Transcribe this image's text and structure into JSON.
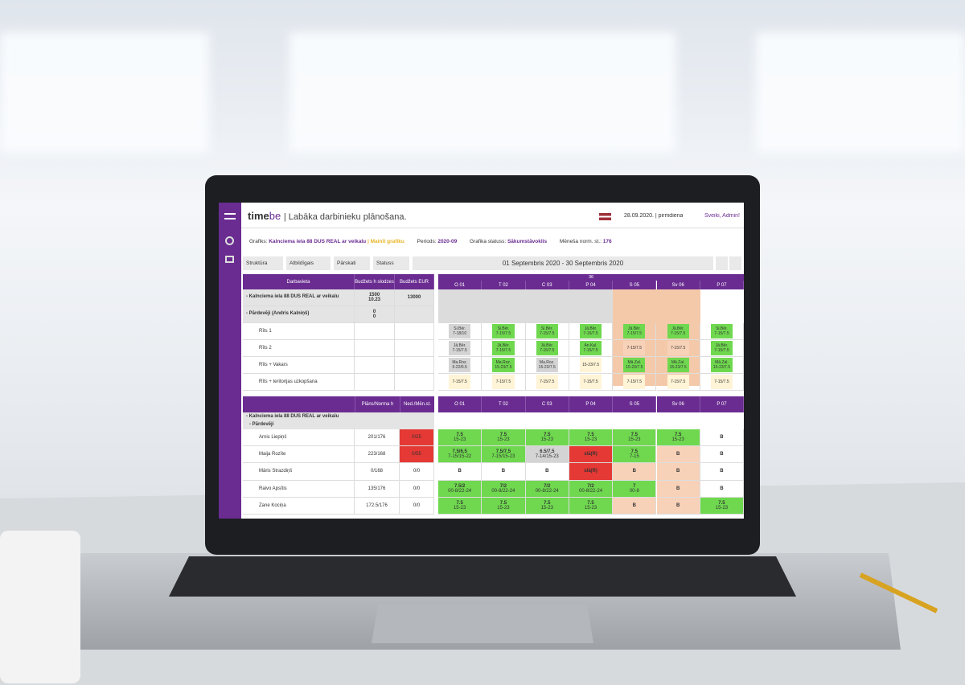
{
  "header": {
    "logo_a": "time",
    "logo_b": "be",
    "tagline": "| Labāka darbinieku plānošana.",
    "date": "28.09.2020. | pirmdiena",
    "greeting": "Sveiki, Admin!"
  },
  "infobar": {
    "grafiks_label": "Grafiks:",
    "grafiks_value": "Kalnciema iela 88 DUS REAL ar veikalu",
    "change_link": "| Mainīt grafiku",
    "periods_label": "Periods:",
    "periods_value": "2020-09",
    "status_label": "Grafika statuss:",
    "status_value": "Sākumstāvoklis",
    "norm_label": "Mēneša norm. st.:",
    "norm_value": "176"
  },
  "filters": [
    "Struktūra",
    "Atbildīgais",
    "Pārskati",
    "Statuss"
  ],
  "date_range": "01 Septembris 2020 - 30 Septembris 2020",
  "days": [
    "O 01",
    "T 02",
    "C 03",
    "P 04",
    "S 05",
    "Sv 06",
    "P 07"
  ],
  "week": "36",
  "top_table": {
    "headers": [
      "Darbavieta",
      "Budžets h slodzes",
      "Budžets EUR"
    ],
    "rows": [
      {
        "label": "- Kalnciema iela 88 DUS REAL ar veikalu",
        "h": [
          "1500",
          "10.23"
        ],
        "eur": "13000",
        "kind": "group",
        "cells": []
      },
      {
        "label": "- Pārdevēji (Andris Kalniņš)",
        "h": [
          "0",
          "0"
        ],
        "kind": "group2",
        "cells": []
      },
      {
        "label": "Rīts 1",
        "kind": "pos",
        "cells": [
          {
            "lines": [
              "Si.Bēr.",
              "7-18/10"
            ],
            "color": "gray"
          },
          {
            "lines": [
              "Si.Bēr.",
              "7-15/7.5"
            ],
            "color": "green"
          },
          {
            "lines": [
              "Si.Bēr.",
              "7-15/7.5"
            ],
            "color": "green"
          },
          {
            "lines": [
              "Jā.Bēr.",
              "7-15/7.5"
            ],
            "color": "green"
          },
          {
            "lines": [
              "Jā.Bēr.",
              "7-15/7.5"
            ],
            "color": "green"
          },
          {
            "lines": [
              "Jā.Bēr.",
              "7-15/7.5"
            ],
            "color": "green"
          },
          {
            "lines": [
              "Si.Bēr.",
              "7-15/7.5"
            ],
            "color": "green"
          }
        ]
      },
      {
        "label": "Rīts 2",
        "kind": "pos",
        "cells": [
          {
            "lines": [
              "Jā.Bēr.",
              "7-15/7.5"
            ],
            "color": "gray"
          },
          {
            "lines": [
              "Jā.Bēr.",
              "7-15/7.5"
            ],
            "color": "green"
          },
          {
            "lines": [
              "Jā.Bēr.",
              "7-15/7.5"
            ],
            "color": "green"
          },
          {
            "lines": [
              "An.Kal.",
              "7-15/7.5"
            ],
            "color": "green"
          },
          {
            "lines": [
              "7-15/7.5"
            ],
            "color": "peach"
          },
          {
            "lines": [
              "7-15/7.5"
            ],
            "color": "peach"
          },
          {
            "lines": [
              "Jā.Bēr.",
              "7-15/7.5"
            ],
            "color": "green"
          }
        ]
      },
      {
        "label": "Rīts + Vakars",
        "kind": "pos",
        "cells": [
          {
            "lines": [
              "Ma.Roz.",
              "5-22/6.5"
            ],
            "color": "gray"
          },
          {
            "lines": [
              "Ma.Roz.",
              "15-23/7.5"
            ],
            "color": "green"
          },
          {
            "lines": [
              "Ma.Roz.",
              "15-23/7.5"
            ],
            "color": "gray"
          },
          {
            "lines": [
              "15-23/7.5"
            ],
            "color": "cream"
          },
          {
            "lines": [
              "Mā.Zal.",
              "15-23/7.5"
            ],
            "color": "green"
          },
          {
            "lines": [
              "Mā.Zal.",
              "15-23/7.5"
            ],
            "color": "green"
          },
          {
            "lines": [
              "Mā.Zal.",
              "15-23/7.5"
            ],
            "color": "green"
          }
        ]
      },
      {
        "label": "Rīts + teritorijas uzkopšana",
        "kind": "pos",
        "cells": [
          {
            "lines": [
              "7-15/7.5"
            ],
            "color": "cream"
          },
          {
            "lines": [
              "7-15/7.5"
            ],
            "color": "cream"
          },
          {
            "lines": [
              "7-15/7.5"
            ],
            "color": "cream"
          },
          {
            "lines": [
              "7-15/7.5"
            ],
            "color": "cream"
          },
          {
            "lines": [
              "7-15/7.5"
            ],
            "color": "cream"
          },
          {
            "lines": [
              "7-15/7.5"
            ],
            "color": "cream"
          },
          {
            "lines": [
              "7-15/7.5"
            ],
            "color": "cream"
          }
        ]
      }
    ]
  },
  "bottom_table": {
    "headers": [
      "Plāns/Norma h",
      "Ned./Mēn.st."
    ],
    "group": "- Kalnciema iela 88 DUS REAL ar veikalu",
    "subgroup": "- Pārdevēji",
    "rows": [
      {
        "name": "Arnis Liepiņš",
        "plan": "201/176",
        "ned": "0/25",
        "ned_color": "red",
        "cells": [
          {
            "lines": [
              "7.5",
              "15-23"
            ],
            "color": "green"
          },
          {
            "lines": [
              "7.5",
              "15-23"
            ],
            "color": "green"
          },
          {
            "lines": [
              "7.5",
              "15-23"
            ],
            "color": "green"
          },
          {
            "lines": [
              "7.5",
              "15-23"
            ],
            "color": "green"
          },
          {
            "lines": [
              "7.5",
              "15-23"
            ],
            "color": "green"
          },
          {
            "lines": [
              "7.5",
              "15-23"
            ],
            "color": "green"
          },
          {
            "lines": [
              "B"
            ],
            "color": "white"
          }
        ]
      },
      {
        "name": "Maija Rozīte",
        "plan": "223/168",
        "ned": "0/55",
        "ned_color": "red",
        "cells": [
          {
            "lines": [
              "7.5/6.5",
              "7-15/15-22"
            ],
            "color": "green"
          },
          {
            "lines": [
              "7.5/7.5",
              "7-15/15-23"
            ],
            "color": "green"
          },
          {
            "lines": [
              "6.5/7.5",
              "7-14/15-23"
            ],
            "color": "gray"
          },
          {
            "lines": [
              "slā(R)"
            ],
            "color": "red"
          },
          {
            "lines": [
              "7.5",
              "7-15"
            ],
            "color": "green"
          },
          {
            "lines": [
              "B"
            ],
            "color": "peach"
          },
          {
            "lines": [
              "B"
            ],
            "color": "white"
          }
        ]
      },
      {
        "name": "Māris Strazdiņš",
        "plan": "0/168",
        "ned": "0/0",
        "ned_color": "white",
        "cells": [
          {
            "lines": [
              "B"
            ],
            "color": "white"
          },
          {
            "lines": [
              "B"
            ],
            "color": "white"
          },
          {
            "lines": [
              "B"
            ],
            "color": "white"
          },
          {
            "lines": [
              "slā(R)"
            ],
            "color": "red"
          },
          {
            "lines": [
              "B"
            ],
            "color": "peach"
          },
          {
            "lines": [
              "B"
            ],
            "color": "peach"
          },
          {
            "lines": [
              "B"
            ],
            "color": "white"
          }
        ]
      },
      {
        "name": "Raivo Apsītis",
        "plan": "135/176",
        "ned": "0/0",
        "ned_color": "white",
        "cells": [
          {
            "lines": [
              "7.5/2",
              "00-8/22-24"
            ],
            "color": "green"
          },
          {
            "lines": [
              "7/2",
              "00-8/22-24"
            ],
            "color": "green"
          },
          {
            "lines": [
              "7/2",
              "00-8/22-24"
            ],
            "color": "green"
          },
          {
            "lines": [
              "7/2",
              "00-8/22-24"
            ],
            "color": "green"
          },
          {
            "lines": [
              "7",
              "00-8"
            ],
            "color": "green"
          },
          {
            "lines": [
              "B"
            ],
            "color": "peach"
          },
          {
            "lines": [
              "B"
            ],
            "color": "white"
          }
        ]
      },
      {
        "name": "Zane Kociņa",
        "plan": "172.5/176",
        "ned": "0/0",
        "ned_color": "white",
        "cells": [
          {
            "lines": [
              "7.5",
              "15-23"
            ],
            "color": "green"
          },
          {
            "lines": [
              "7.5",
              "15-23"
            ],
            "color": "green"
          },
          {
            "lines": [
              "7.5",
              "15-23"
            ],
            "color": "green"
          },
          {
            "lines": [
              "7.5",
              "15-23"
            ],
            "color": "green"
          },
          {
            "lines": [
              "B"
            ],
            "color": "peach"
          },
          {
            "lines": [
              "B"
            ],
            "color": "peach"
          },
          {
            "lines": [
              "7.5",
              "15-23"
            ],
            "color": "green"
          }
        ]
      }
    ]
  }
}
